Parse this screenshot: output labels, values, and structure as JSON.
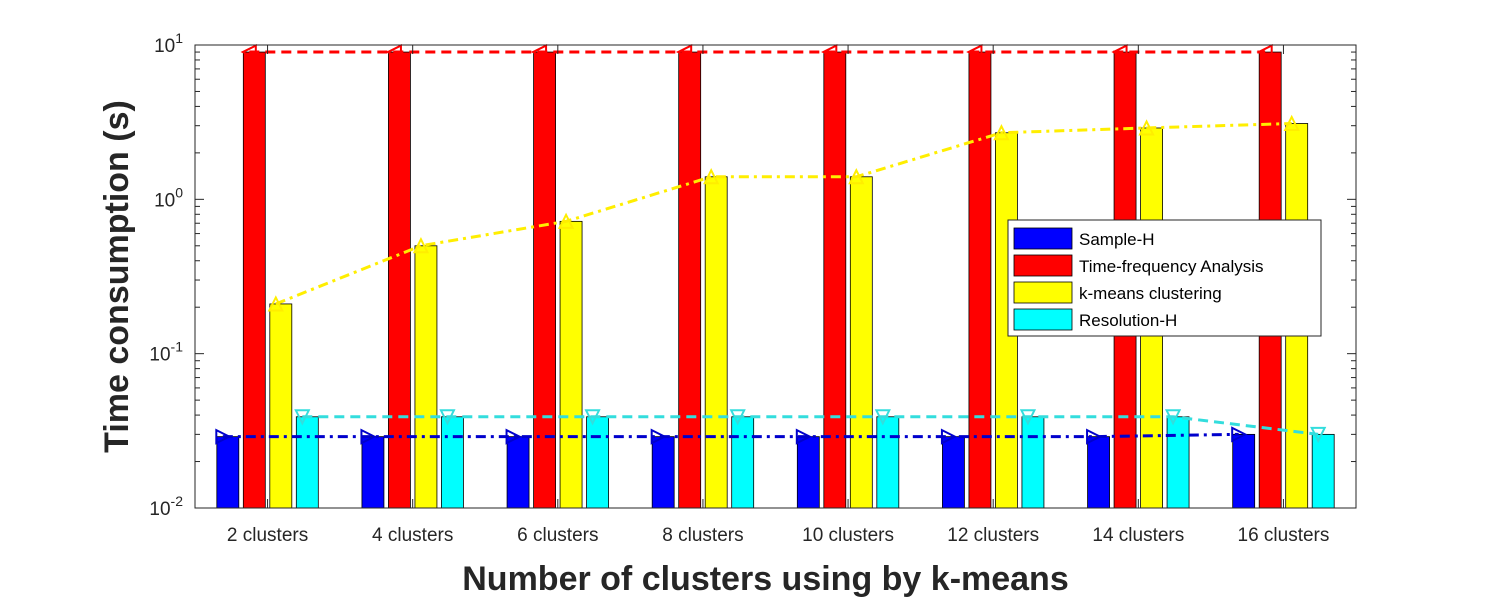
{
  "chart_data": {
    "type": "bar",
    "title": "",
    "xlabel": "Number of clusters using by k-means",
    "ylabel": "Time consumption (s)",
    "yscale": "log",
    "ylim": [
      0.01,
      10
    ],
    "y_ticks": [
      {
        "value": 0.01,
        "base": "10",
        "exp": "-2"
      },
      {
        "value": 0.1,
        "base": "10",
        "exp": "-1"
      },
      {
        "value": 1,
        "base": "10",
        "exp": "0"
      },
      {
        "value": 10,
        "base": "10",
        "exp": "1"
      }
    ],
    "grid": false,
    "legend_position": "right, upper-middle",
    "categories": [
      "2 clusters",
      "4 clusters",
      "6 clusters",
      "8 clusters",
      "10 clusters",
      "12 clusters",
      "14 clusters",
      "16 clusters"
    ],
    "series": [
      {
        "name": "Sample-H",
        "color": "#0000ff",
        "values": [
          0.029,
          0.029,
          0.029,
          0.029,
          0.029,
          0.029,
          0.029,
          0.03
        ],
        "line": {
          "color": "#0000cc",
          "style": "dashdot",
          "marker": "triangle-right"
        }
      },
      {
        "name": "Time-frequency Analysis",
        "color": "#ff0000",
        "values": [
          9,
          9,
          9,
          9,
          9,
          9,
          9,
          9
        ],
        "line": {
          "color": "#ff0000",
          "style": "dashed",
          "marker": "triangle-left"
        }
      },
      {
        "name": "k-means clustering",
        "color": "#ffff00",
        "values": [
          0.21,
          0.5,
          0.72,
          1.4,
          1.4,
          2.7,
          2.9,
          3.1
        ],
        "line": {
          "color": "#ffee00",
          "style": "dashdot",
          "marker": "triangle-up"
        }
      },
      {
        "name": "Resolution-H",
        "color": "#00ffff",
        "values": [
          0.039,
          0.039,
          0.039,
          0.039,
          0.039,
          0.039,
          0.039,
          0.03
        ],
        "line": {
          "color": "#33dddd",
          "style": "dashed",
          "marker": "triangle-down"
        }
      }
    ]
  }
}
